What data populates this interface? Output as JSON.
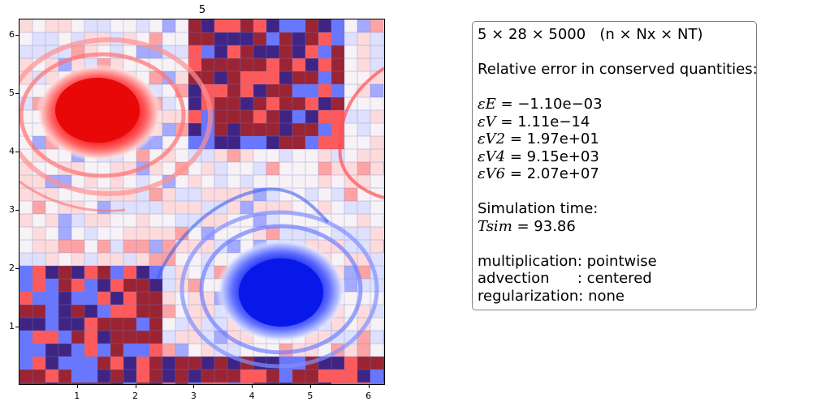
{
  "chart_data": {
    "type": "heatmap",
    "title": "5",
    "xlabel": "",
    "ylabel": "",
    "xlim": [
      0,
      6.283
    ],
    "ylim": [
      0,
      6.283
    ],
    "x_ticks": [
      "1",
      "2",
      "3",
      "4",
      "5",
      "6"
    ],
    "y_ticks": [
      "1",
      "2",
      "3",
      "4",
      "5",
      "6"
    ],
    "colormap": "bwr",
    "features": [
      {
        "type": "positive-vortex",
        "color": "#e00000",
        "center": [
          1.4,
          4.7
        ]
      },
      {
        "type": "negative-vortex",
        "color": "#0010e0",
        "center": [
          4.5,
          1.65
        ]
      }
    ]
  },
  "info": {
    "header": "5 × 28 × 5000   (n × Nx × NT)",
    "relative_error_heading": "Relative error in conserved quantities:",
    "errors": [
      {
        "symbol": "εE",
        "value": "−1.10e−03"
      },
      {
        "symbol": "εV",
        "value": "1.11e−14"
      },
      {
        "symbol": "εV2",
        "value": "1.97e+01"
      },
      {
        "symbol": "εV4",
        "value": "9.15e+03"
      },
      {
        "symbol": "εV6",
        "value": "2.07e+07"
      }
    ],
    "sim_time_heading": "Simulation time:",
    "sim_time": {
      "symbol": "Tsim",
      "value": "93.86"
    },
    "multiplication": "multiplication: pointwise",
    "advection": "advection      : centered",
    "regularization": "regularization: none"
  },
  "colors": {
    "positive": "#e00000",
    "negative": "#0010e0",
    "neutral": "#ffffff"
  }
}
